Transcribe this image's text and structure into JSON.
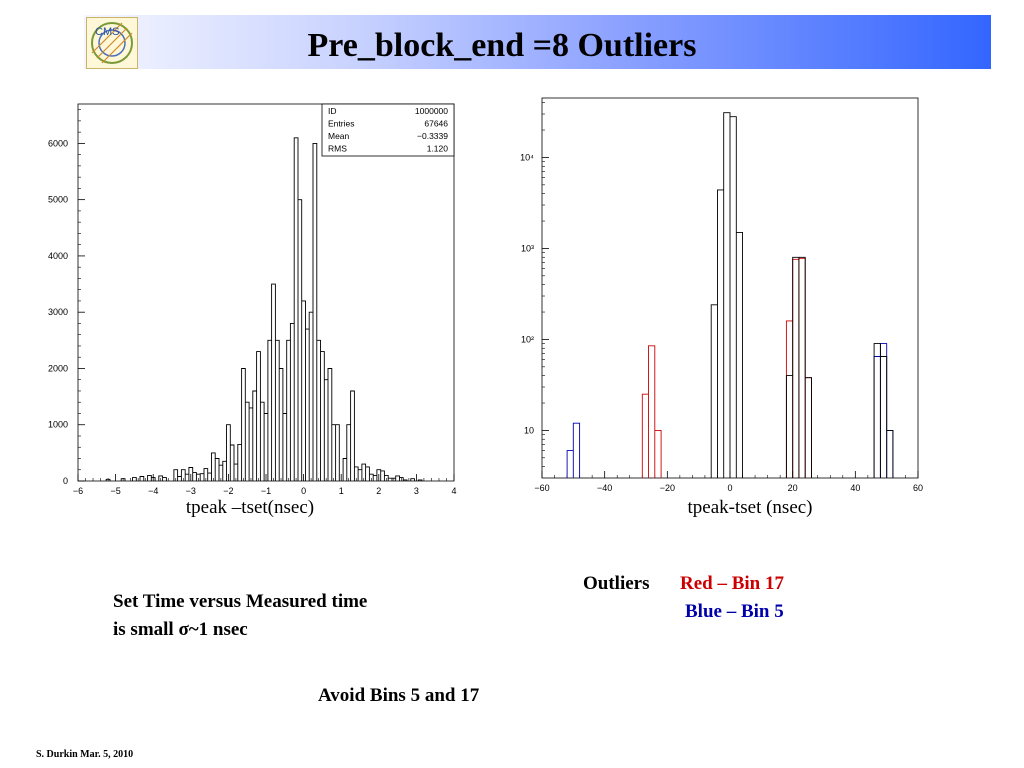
{
  "slide": {
    "title": "Pre_block_end =8 Outliers",
    "logo_text": "CMS",
    "left_axis_caption": "tpeak –tset(nsec)",
    "right_axis_caption": "tpeak-tset (nsec)",
    "note_line1": "Set Time versus Measured time",
    "note_line2": "is small σ~1 nsec",
    "outliers_label": "Outliers",
    "outliers_red": "Red – Bin 17",
    "outliers_blue": "Blue – Bin 5",
    "avoid_note": "Avoid Bins 5 and 17",
    "footer": "S. Durkin Mar. 5, 2010"
  },
  "colors": {
    "red": "#cc0000",
    "blue": "#0000aa",
    "hist": "#000000"
  },
  "chart_data": [
    {
      "type": "bar",
      "xlabel": "tpeak –tset(nsec)",
      "xlim": [
        -6,
        4
      ],
      "ylim": [
        0,
        6700
      ],
      "x_ticks": [
        "−6",
        "−5",
        "−4",
        "−3",
        "−2",
        "−1",
        "0",
        "1",
        "2",
        "3",
        "4"
      ],
      "y_ticks": [
        "0",
        "1000",
        "2000",
        "3000",
        "4000",
        "5000",
        "6000"
      ],
      "stats": [
        {
          "label": "ID",
          "value": "1000000"
        },
        {
          "label": "Entries",
          "value": "67646"
        },
        {
          "label": "Mean",
          "value": "−0.3339"
        },
        {
          "label": "RMS",
          "value": "1.120"
        }
      ],
      "bin_width": 0.1,
      "series": [
        {
          "bins": [
            [
              -5.2,
              30
            ],
            [
              -4.8,
              40
            ],
            [
              -4.5,
              60
            ],
            [
              -4.3,
              80
            ],
            [
              -4.1,
              100
            ],
            [
              -4.0,
              60
            ],
            [
              -3.8,
              90
            ],
            [
              -3.7,
              60
            ],
            [
              -3.4,
              200
            ],
            [
              -3.3,
              80
            ],
            [
              -3.2,
              200
            ],
            [
              -3.1,
              120
            ],
            [
              -3.0,
              240
            ],
            [
              -2.9,
              150
            ],
            [
              -2.8,
              120
            ],
            [
              -2.7,
              130
            ],
            [
              -2.6,
              220
            ],
            [
              -2.5,
              140
            ],
            [
              -2.4,
              500
            ],
            [
              -2.3,
              400
            ],
            [
              -2.2,
              280
            ],
            [
              -2.1,
              350
            ],
            [
              -2.0,
              1000
            ],
            [
              -1.9,
              640
            ],
            [
              -1.8,
              300
            ],
            [
              -1.7,
              650
            ],
            [
              -1.6,
              2000
            ],
            [
              -1.5,
              1400
            ],
            [
              -1.4,
              1300
            ],
            [
              -1.3,
              1600
            ],
            [
              -1.2,
              2300
            ],
            [
              -1.1,
              1400
            ],
            [
              -1.0,
              1200
            ],
            [
              -0.9,
              2500
            ],
            [
              -0.8,
              3500
            ],
            [
              -0.7,
              2500
            ],
            [
              -0.6,
              2000
            ],
            [
              -0.5,
              1200
            ],
            [
              -0.4,
              2500
            ],
            [
              -0.3,
              2800
            ],
            [
              -0.2,
              6100
            ],
            [
              -0.1,
              5000
            ],
            [
              0.0,
              3200
            ],
            [
              0.1,
              2700
            ],
            [
              0.2,
              3000
            ],
            [
              0.3,
              6000
            ],
            [
              0.4,
              2500
            ],
            [
              0.5,
              2300
            ],
            [
              0.6,
              1800
            ],
            [
              0.7,
              2000
            ],
            [
              0.8,
              1000
            ],
            [
              0.9,
              1000
            ],
            [
              1.1,
              400
            ],
            [
              1.2,
              1000
            ],
            [
              1.3,
              1600
            ],
            [
              1.4,
              250
            ],
            [
              1.5,
              200
            ],
            [
              1.6,
              300
            ],
            [
              1.7,
              250
            ],
            [
              1.8,
              120
            ],
            [
              1.9,
              100
            ],
            [
              2.0,
              200
            ],
            [
              2.1,
              180
            ],
            [
              2.2,
              100
            ],
            [
              2.3,
              50
            ],
            [
              2.4,
              50
            ],
            [
              2.5,
              90
            ],
            [
              2.6,
              60
            ],
            [
              2.7,
              20
            ],
            [
              2.9,
              40
            ],
            [
              3.1,
              20
            ]
          ]
        }
      ]
    },
    {
      "type": "bar",
      "xlabel": "tpeak-tset (nsec)",
      "xlim": [
        -60,
        60
      ],
      "y_scale": "log",
      "ylim": [
        3,
        45000
      ],
      "x_ticks": [
        "−60",
        "−40",
        "−20",
        "0",
        "20",
        "40",
        "60"
      ],
      "y_ticks": [
        "10",
        "10²",
        "10³",
        "10⁴"
      ],
      "bin_width": 2,
      "series": [
        {
          "color": "#cc0000",
          "bins": [
            [
              -27,
              25
            ],
            [
              -25,
              85
            ],
            [
              -23,
              10
            ],
            [
              19,
              160
            ],
            [
              21,
              760
            ],
            [
              23,
              780
            ],
            [
              25,
              38
            ]
          ]
        },
        {
          "color": "#0000aa",
          "bins": [
            [
              -51,
              6
            ],
            [
              -49,
              12
            ],
            [
              47,
              65
            ],
            [
              49,
              90
            ],
            [
              51,
              10
            ]
          ]
        },
        {
          "color": "#000000",
          "bins": [
            [
              -5,
              240
            ],
            [
              -3,
              4400
            ],
            [
              -1,
              31000
            ],
            [
              1,
              28000
            ],
            [
              3,
              1500
            ],
            [
              19,
              40
            ],
            [
              21,
              800
            ],
            [
              23,
              800
            ],
            [
              25,
              38
            ],
            [
              47,
              90
            ],
            [
              49,
              65
            ],
            [
              51,
              10
            ]
          ]
        }
      ]
    }
  ]
}
